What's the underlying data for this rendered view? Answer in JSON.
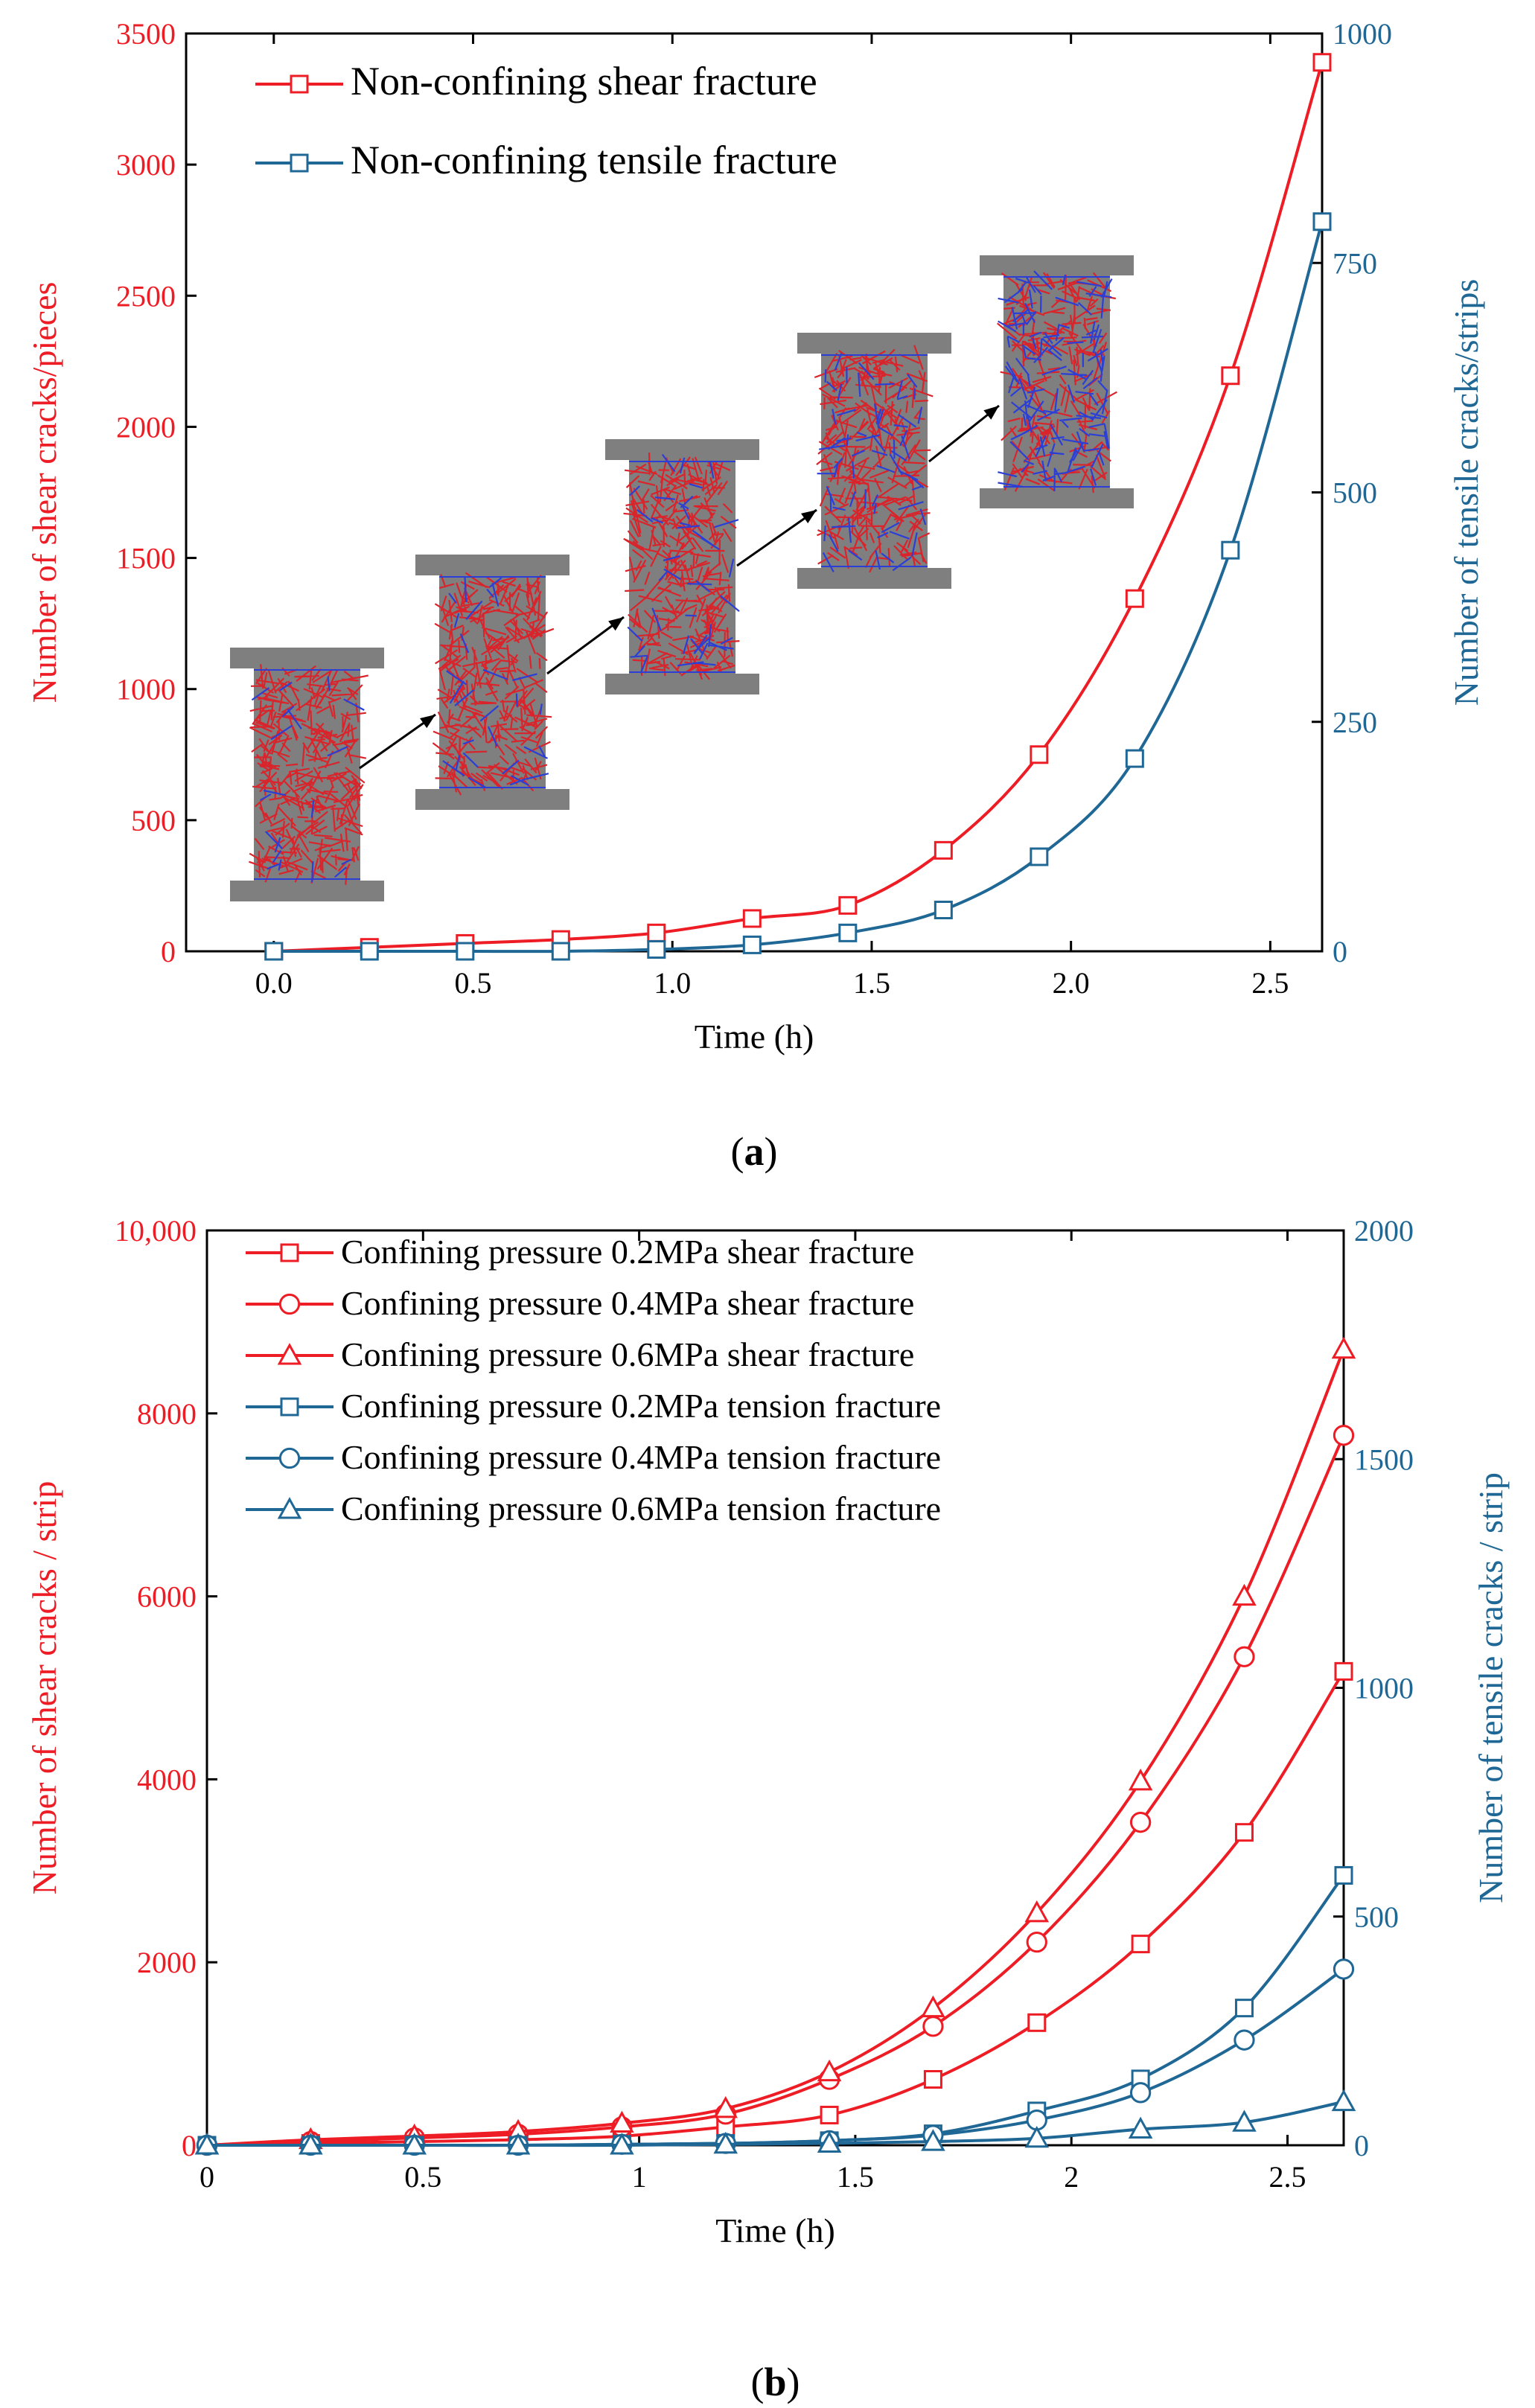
{
  "colors": {
    "red": "#ee1c24",
    "blue": "#1f6795",
    "axis": "#000000",
    "specimen_gray": "#7f7f7f"
  },
  "chart_data": [
    {
      "id": "a",
      "type": "line",
      "panel_label": "a",
      "xlabel": "Time (h)",
      "ylabel": "Number of shear cracks/pieces",
      "y2label": "Number of tensile cracks/strips",
      "xlim": [
        -0.22,
        2.63
      ],
      "ylim": [
        0,
        3500
      ],
      "y2lim": [
        0,
        1000
      ],
      "xticks": [
        0.0,
        0.5,
        1.0,
        1.5,
        2.0,
        2.5
      ],
      "xtick_labels": [
        "0.0",
        "0.5",
        "1.0",
        "1.5",
        "2.0",
        "2.5"
      ],
      "yticks": [
        0,
        500,
        1000,
        1500,
        2000,
        2500,
        3000,
        3500
      ],
      "ytick_labels": [
        "0",
        "500",
        "1000",
        "1500",
        "2000",
        "2500",
        "3000",
        "3500"
      ],
      "y2ticks": [
        0,
        250,
        500,
        750,
        1000
      ],
      "y2tick_labels": [
        "0",
        "250",
        "500",
        "750",
        "1000"
      ],
      "legend_position": "top-left",
      "series": [
        {
          "name": "Non-confining shear fracture",
          "axis": "left",
          "color": "#ee1c24",
          "marker": "square",
          "x": [
            0,
            0.24,
            0.48,
            0.72,
            0.96,
            1.2,
            1.44,
            1.68,
            1.92,
            2.16,
            2.4,
            2.63
          ],
          "y": [
            0,
            15,
            30,
            45,
            70,
            125,
            175,
            385,
            750,
            1345,
            2195,
            3390
          ]
        },
        {
          "name": "Non-confining tensile fracture",
          "axis": "right",
          "color": "#1f6795",
          "marker": "square",
          "x": [
            0,
            0.24,
            0.48,
            0.72,
            0.96,
            1.2,
            1.44,
            1.68,
            1.92,
            2.16,
            2.4,
            2.63
          ],
          "y": [
            0,
            0,
            0,
            0,
            2,
            7,
            20,
            45,
            103,
            210,
            437,
            795
          ]
        }
      ],
      "inset": {
        "description": "specimen crack evolution",
        "specimens": 5
      }
    },
    {
      "id": "b",
      "type": "line",
      "panel_label": "b",
      "xlabel": "Time (h)",
      "ylabel": "Number of shear cracks / strip",
      "y2label": "Number of tensile cracks / strip",
      "xlim": [
        0,
        2.63
      ],
      "ylim": [
        0,
        10000
      ],
      "y2lim": [
        0,
        2000
      ],
      "xticks": [
        0,
        0.5,
        1,
        1.5,
        2,
        2.5
      ],
      "xtick_labels": [
        "0",
        "0.5",
        "1",
        "1.5",
        "2",
        "2.5"
      ],
      "yticks": [
        0,
        2000,
        4000,
        6000,
        8000,
        10000
      ],
      "ytick_labels": [
        "0",
        "2000",
        "4000",
        "6000",
        "8000",
        "10,000"
      ],
      "y2ticks": [
        0,
        500,
        1000,
        1500,
        2000
      ],
      "y2tick_labels": [
        "0",
        "500",
        "1000",
        "1500",
        "2000"
      ],
      "legend_position": "top-left",
      "series": [
        {
          "name": "Confining pressure 0.2MPa shear fracture",
          "axis": "left",
          "color": "#ee1c24",
          "marker": "square",
          "x": [
            0,
            0.24,
            0.48,
            0.72,
            0.96,
            1.2,
            1.44,
            1.68,
            1.92,
            2.16,
            2.4,
            2.63
          ],
          "y": [
            0,
            20,
            40,
            60,
            100,
            200,
            330,
            720,
            1340,
            2200,
            3420,
            5180
          ]
        },
        {
          "name": "Confining pressure 0.4MPa shear fracture",
          "axis": "left",
          "color": "#ee1c24",
          "marker": "circle",
          "x": [
            0,
            0.24,
            0.48,
            0.72,
            0.96,
            1.2,
            1.44,
            1.68,
            1.92,
            2.16,
            2.4,
            2.63
          ],
          "y": [
            0,
            40,
            80,
            120,
            200,
            340,
            720,
            1300,
            2220,
            3530,
            5340,
            7760
          ]
        },
        {
          "name": "Confining pressure 0.6MPa shear fracture",
          "axis": "left",
          "color": "#ee1c24",
          "marker": "triangle",
          "x": [
            0,
            0.24,
            0.48,
            0.72,
            0.96,
            1.2,
            1.44,
            1.68,
            1.92,
            2.16,
            2.4,
            2.63
          ],
          "y": [
            0,
            60,
            100,
            150,
            240,
            400,
            800,
            1500,
            2540,
            3980,
            6000,
            8700
          ]
        },
        {
          "name": "Confining pressure 0.2MPa tension fracture",
          "axis": "right",
          "color": "#1f6795",
          "marker": "square",
          "x": [
            0,
            0.24,
            0.48,
            0.72,
            0.96,
            1.2,
            1.44,
            1.68,
            1.92,
            2.16,
            2.4,
            2.63
          ],
          "y": [
            0,
            0,
            0,
            0,
            2,
            4,
            10,
            25,
            75,
            145,
            300,
            590
          ]
        },
        {
          "name": "Confining pressure 0.4MPa tension fracture",
          "axis": "right",
          "color": "#1f6795",
          "marker": "circle",
          "x": [
            0,
            0.24,
            0.48,
            0.72,
            0.96,
            1.2,
            1.44,
            1.68,
            1.92,
            2.16,
            2.4,
            2.63
          ],
          "y": [
            0,
            0,
            0,
            0,
            2,
            4,
            10,
            22,
            55,
            115,
            230,
            385
          ]
        },
        {
          "name": "Confining pressure 0.6MPa tension fracture",
          "axis": "right",
          "color": "#1f6795",
          "marker": "triangle",
          "x": [
            0,
            0.24,
            0.48,
            0.72,
            0.96,
            1.2,
            1.44,
            1.68,
            1.92,
            2.16,
            2.4,
            2.63
          ],
          "y": [
            0,
            0,
            0,
            0,
            0,
            2,
            4,
            8,
            15,
            35,
            50,
            95
          ]
        }
      ]
    }
  ]
}
